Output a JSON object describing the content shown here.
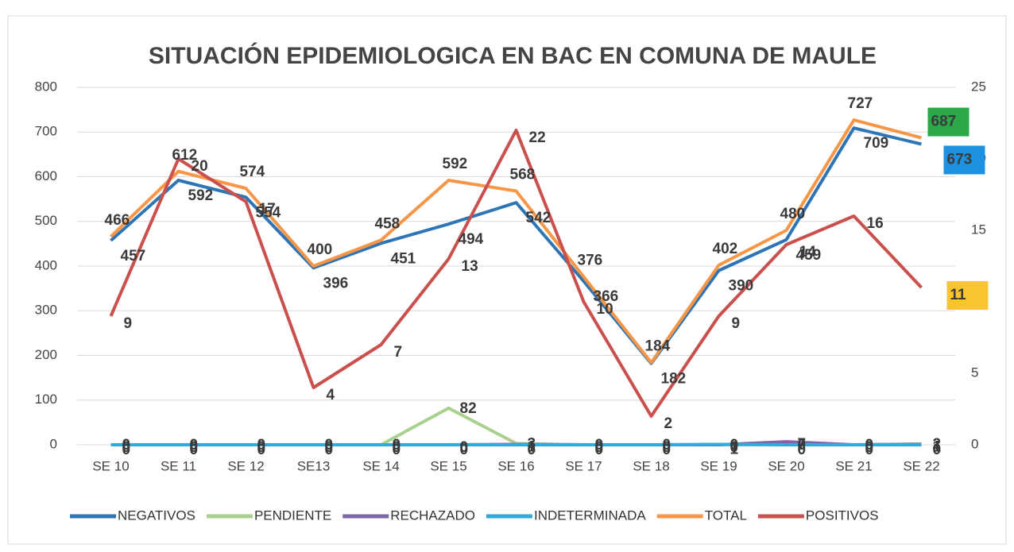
{
  "chart_data": {
    "type": "line",
    "title": "SITUACIÓN EPIDEMIOLOGICA EN BAC EN COMUNA DE MAULE",
    "categories": [
      "SE 10",
      "SE 11",
      "SE 12",
      "SE13",
      "SE 14",
      "SE 15",
      "SE 16",
      "SE 17",
      "SE 18",
      "SE 19",
      "SE 20",
      "SE 21",
      "SE 22"
    ],
    "ylim": [
      0,
      800
    ],
    "yticks": [
      0,
      100,
      200,
      300,
      400,
      500,
      600,
      700,
      800
    ],
    "y2lim": [
      0,
      25
    ],
    "y2ticks": [
      0,
      5,
      10,
      15,
      20,
      25
    ],
    "grid": true,
    "legend": "bottom",
    "series": [
      {
        "name": "NEGATIVOS",
        "color": "#2e75b6",
        "values": [
          457,
          592,
          554,
          396,
          451,
          494,
          542,
          366,
          182,
          390,
          459,
          709,
          673
        ],
        "end_label_color": "#1e90e0"
      },
      {
        "name": "PENDIENTE",
        "color": "#a9d18e",
        "values": [
          0,
          0,
          0,
          0,
          0,
          82,
          3,
          0,
          0,
          0,
          0,
          0,
          2
        ]
      },
      {
        "name": "RECHAZADO",
        "color": "#7f65a8",
        "values": [
          0,
          0,
          0,
          0,
          0,
          0,
          1,
          0,
          0,
          0,
          7,
          0,
          1
        ]
      },
      {
        "name": "INDETERMINADA",
        "color": "#33a9dc",
        "values": [
          0,
          0,
          0,
          0,
          0,
          0,
          0,
          0,
          0,
          1,
          0,
          0,
          0
        ]
      },
      {
        "name": "TOTAL",
        "color": "#f79646",
        "values": [
          466,
          612,
          574,
          400,
          458,
          592,
          568,
          376,
          184,
          402,
          480,
          727,
          687
        ],
        "end_label_color": "#2aa84a"
      },
      {
        "name": "POSITIVOS",
        "color": "#c9504d",
        "axis": "y2",
        "values": [
          9,
          20,
          17,
          4,
          7,
          13,
          22,
          10,
          2,
          9,
          14,
          16,
          11
        ],
        "end_label_color": "#f8c530"
      }
    ]
  }
}
